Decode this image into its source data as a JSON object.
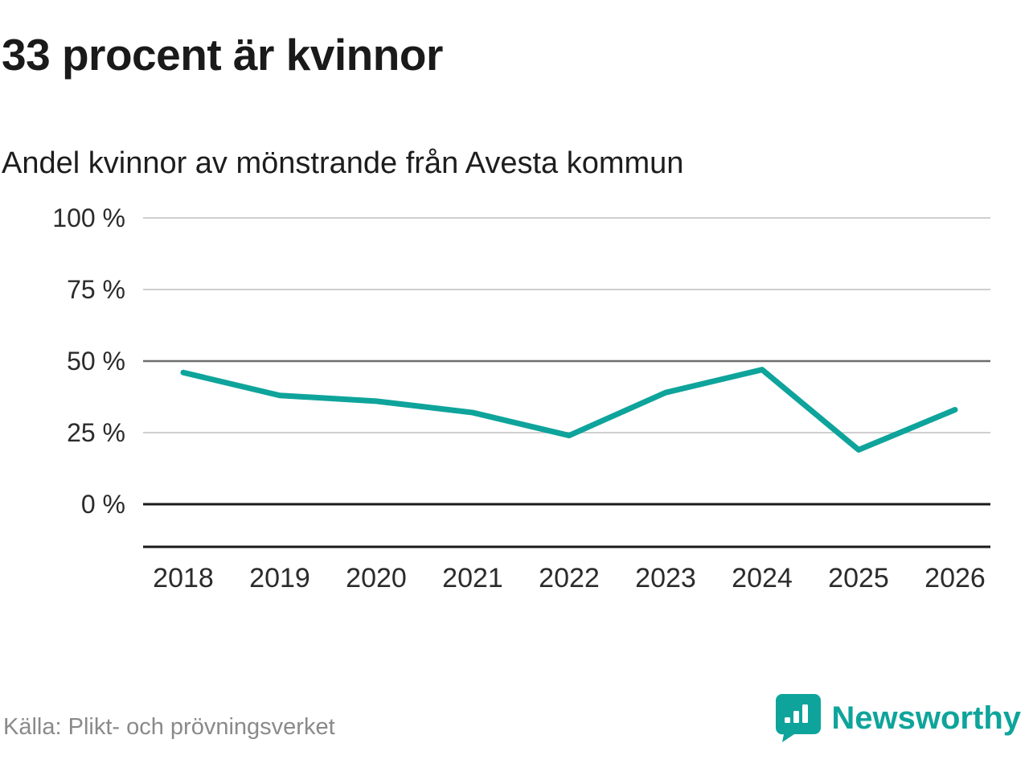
{
  "header": {
    "title": "33 procent är kvinnor",
    "subtitle": "Andel kvinnor av mönstrande från Avesta kommun"
  },
  "chart_data": {
    "type": "line",
    "title": "33 procent är kvinnor",
    "subtitle": "Andel kvinnor av mönstrande från Avesta kommun",
    "x": [
      2018,
      2019,
      2020,
      2021,
      2022,
      2023,
      2024,
      2025,
      2026
    ],
    "x_tick_labels": [
      "2018",
      "2019",
      "2020",
      "2021",
      "2022",
      "2023",
      "2024",
      "2025",
      "2026"
    ],
    "series": [
      {
        "name": "Andel kvinnor av mönstrande",
        "values": [
          46,
          38,
          36,
          32,
          24,
          39,
          47,
          19,
          33
        ]
      }
    ],
    "ylim": [
      0,
      100
    ],
    "yticks": [
      {
        "value": 100,
        "label": "100 %"
      },
      {
        "value": 75,
        "label": "75 %"
      },
      {
        "value": 50,
        "label": "50 %"
      },
      {
        "value": 25,
        "label": "25 %"
      },
      {
        "value": 0,
        "label": "0 %"
      }
    ],
    "grid": true,
    "legend": "none",
    "line_color": "#0ea49b",
    "gridline_color": "#cfcfcf",
    "gridline_emphasis_color": "#6e6e6e",
    "axis_color": "#1a1a1a",
    "tick_label_color": "#2b2b2b"
  },
  "footer": {
    "source": "Källa: Plikt- och prövningsverket",
    "brand": "Newsworthy",
    "brand_color": "#0ea49b"
  }
}
